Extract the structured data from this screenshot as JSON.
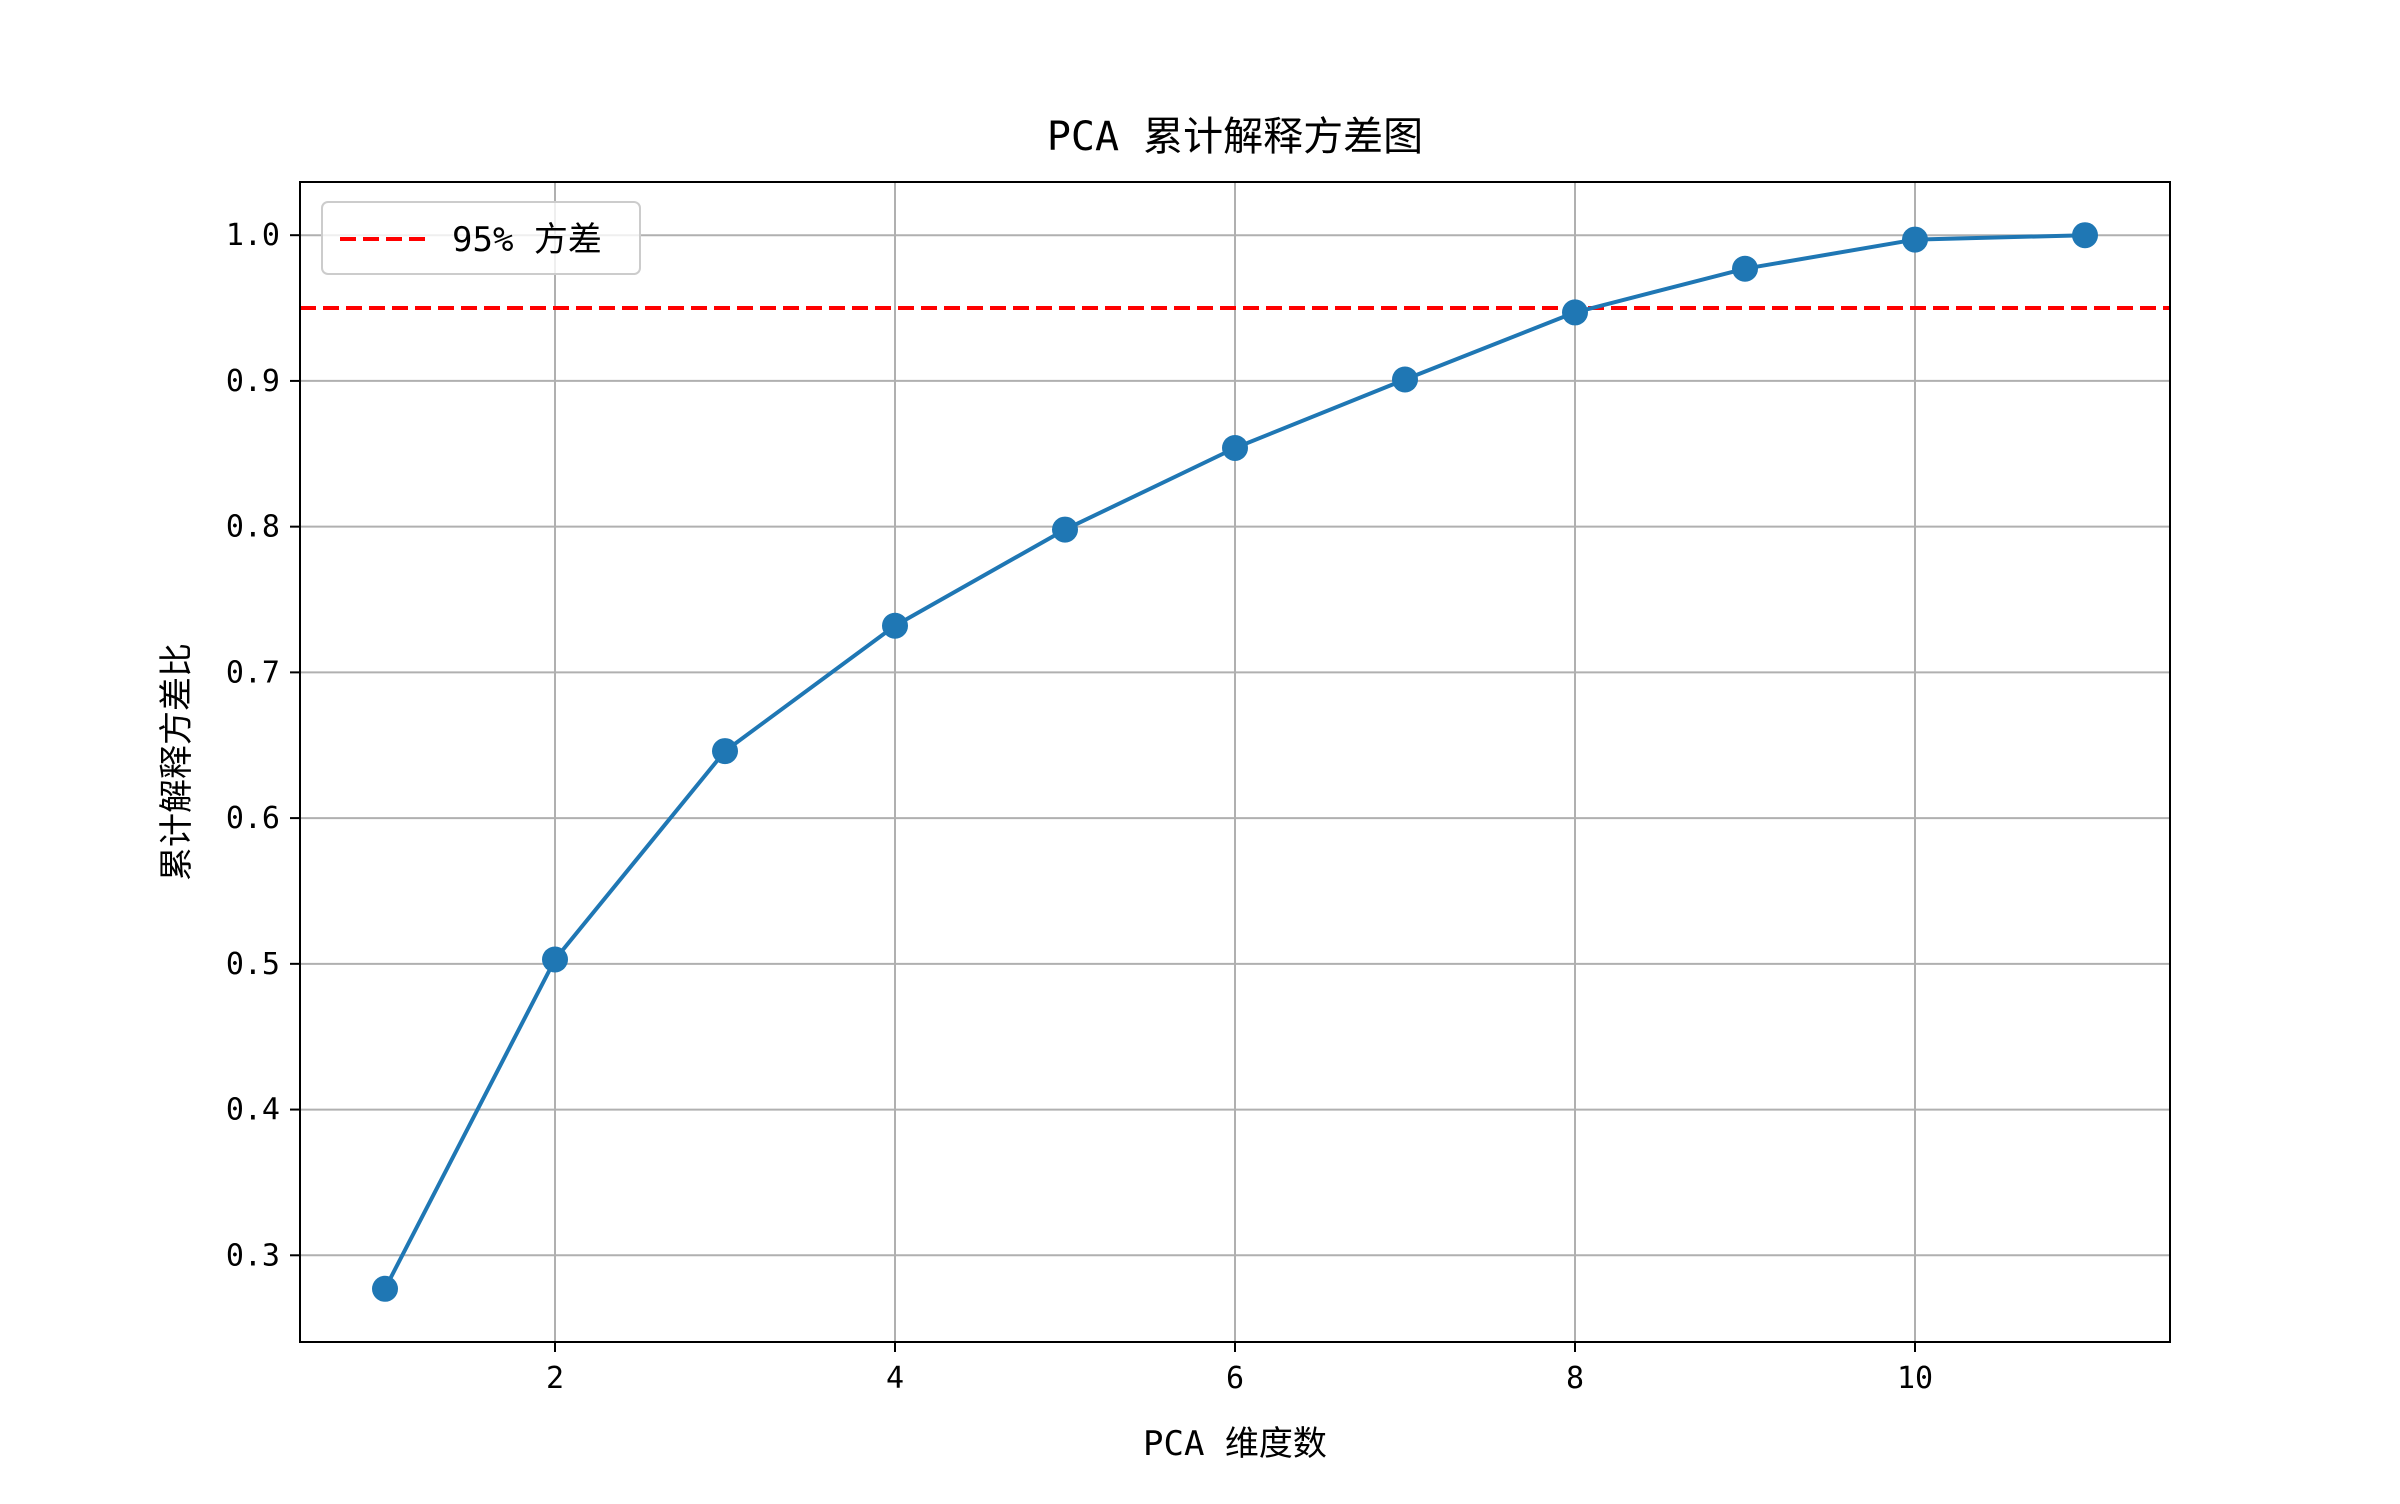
{
  "chart_data": {
    "type": "line",
    "title": "PCA 累计解释方差图",
    "xlabel": "PCA 维度数",
    "ylabel": "累计解释方差比",
    "x": [
      1,
      2,
      3,
      4,
      5,
      6,
      7,
      8,
      9,
      10,
      11
    ],
    "series": [
      {
        "values": [
          0.277,
          0.503,
          0.646,
          0.732,
          0.798,
          0.854,
          0.901,
          0.947,
          0.977,
          0.997,
          1.0
        ],
        "color": "#1f77b4",
        "marker": "circle"
      }
    ],
    "reference_line": {
      "label": "95% 方差",
      "y": 0.95,
      "color": "#ff0000",
      "style": "dashed"
    },
    "xlim": [
      0.5,
      11.5
    ],
    "ylim": [
      0.2405,
      1.0365
    ],
    "xticks": [
      2,
      4,
      6,
      8,
      10
    ],
    "yticks": [
      0.3,
      0.4,
      0.5,
      0.6,
      0.7,
      0.8,
      0.9,
      1.0
    ],
    "ytick_labels": [
      "0.3",
      "0.4",
      "0.5",
      "0.6",
      "0.7",
      "0.8",
      "0.9",
      "1.0"
    ],
    "grid": true,
    "legend_position": "top-left"
  }
}
